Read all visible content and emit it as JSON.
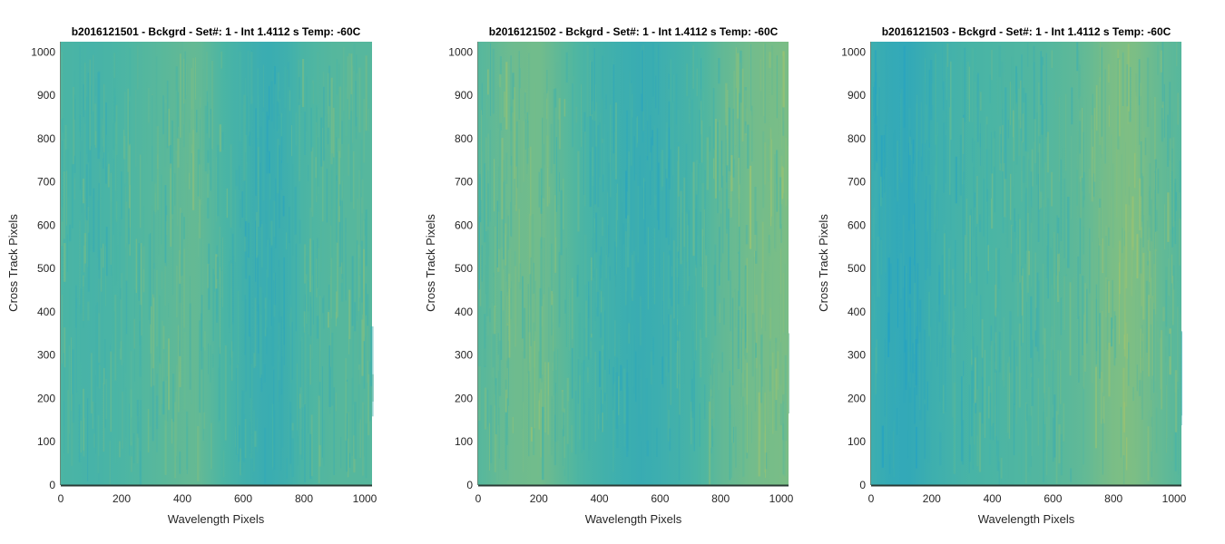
{
  "colors": {
    "low": "#1e9fc8",
    "mid": "#4bb5a4",
    "high": "#b8c860",
    "axis": "#262626",
    "axis_line": "#2a3a35"
  },
  "chart_data": [
    {
      "type": "heatmap",
      "title": "b2016121501 - Bckgrd - Set#: 1 - Int 1.4112 s Temp: -60C",
      "xlabel": "Wavelength Pixels",
      "ylabel": "Cross Track Pixels",
      "xlim": [
        0,
        1024
      ],
      "ylim": [
        0,
        1024
      ],
      "xticks": [
        0,
        200,
        400,
        600,
        800,
        1000
      ],
      "yticks": [
        0,
        100,
        200,
        300,
        400,
        500,
        600,
        700,
        800,
        900,
        1000
      ],
      "grid": false,
      "column_intensity_profile": {
        "x": [
          0,
          100,
          200,
          300,
          400,
          450,
          500,
          600,
          680,
          750,
          800,
          900,
          1024
        ],
        "level": [
          0.5,
          0.45,
          0.5,
          0.55,
          0.6,
          0.62,
          0.55,
          0.4,
          0.3,
          0.38,
          0.5,
          0.55,
          0.55
        ]
      }
    },
    {
      "type": "heatmap",
      "title": "b2016121502 - Bckgrd - Set#: 1 - Int 1.4112 s Temp: -60C",
      "xlabel": "Wavelength Pixels",
      "ylabel": "Cross Track Pixels",
      "xlim": [
        0,
        1024
      ],
      "ylim": [
        0,
        1024
      ],
      "xticks": [
        0,
        200,
        400,
        600,
        800,
        1000
      ],
      "yticks": [
        0,
        100,
        200,
        300,
        400,
        500,
        600,
        700,
        800,
        900,
        1000
      ],
      "grid": false,
      "column_intensity_profile": {
        "x": [
          0,
          100,
          200,
          300,
          400,
          500,
          550,
          600,
          700,
          800,
          900,
          1024
        ],
        "level": [
          0.55,
          0.65,
          0.68,
          0.55,
          0.42,
          0.32,
          0.3,
          0.35,
          0.45,
          0.6,
          0.68,
          0.72
        ]
      }
    },
    {
      "type": "heatmap",
      "title": "b2016121503 - Bckgrd - Set#: 1 - Int 1.4112 s Temp: -60C",
      "xlabel": "Wavelength Pixels",
      "ylabel": "Cross Track Pixels",
      "xlim": [
        0,
        1024
      ],
      "ylim": [
        0,
        1024
      ],
      "xticks": [
        0,
        200,
        400,
        600,
        800,
        1000
      ],
      "yticks": [
        0,
        100,
        200,
        300,
        400,
        500,
        600,
        700,
        800,
        900,
        1000
      ],
      "grid": false,
      "column_intensity_profile": {
        "x": [
          0,
          60,
          120,
          200,
          300,
          400,
          500,
          600,
          700,
          800,
          860,
          950,
          1024
        ],
        "level": [
          0.35,
          0.25,
          0.22,
          0.35,
          0.45,
          0.5,
          0.52,
          0.55,
          0.6,
          0.72,
          0.74,
          0.62,
          0.55
        ]
      }
    }
  ]
}
